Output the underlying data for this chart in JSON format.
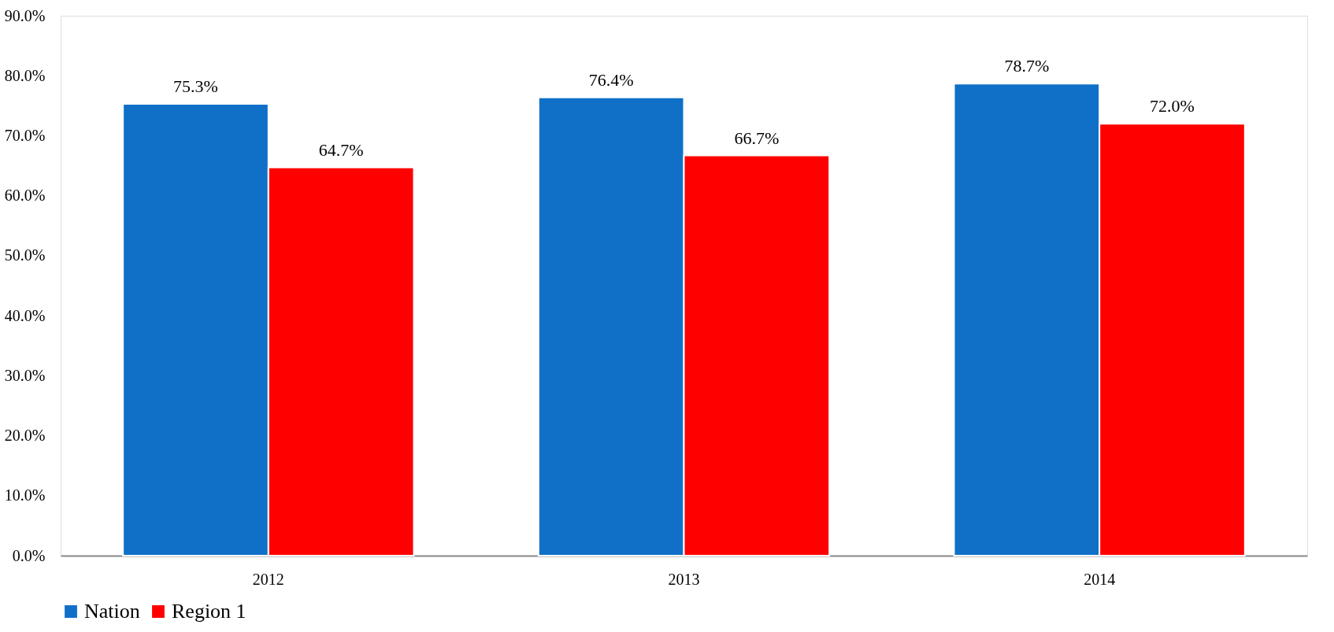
{
  "chart_data": {
    "type": "bar",
    "categories": [
      "2012",
      "2013",
      "2014"
    ],
    "series": [
      {
        "name": "Nation",
        "color": "#1070c8",
        "values": [
          75.3,
          76.4,
          78.7
        ],
        "value_labels": [
          "75.3%",
          "76.4%",
          "78.7%"
        ]
      },
      {
        "name": "Region 1",
        "color": "#ff0000",
        "values": [
          64.7,
          66.7,
          72.0
        ],
        "value_labels": [
          "64.7%",
          "66.7%",
          "72.0%"
        ]
      }
    ],
    "ylim": [
      0,
      90
    ],
    "yticks": [
      {
        "value": 0,
        "label": "0.0%"
      },
      {
        "value": 10,
        "label": "10.0%"
      },
      {
        "value": 20,
        "label": "20.0%"
      },
      {
        "value": 30,
        "label": "30.0%"
      },
      {
        "value": 40,
        "label": "40.0%"
      },
      {
        "value": 50,
        "label": "50.0%"
      },
      {
        "value": 60,
        "label": "60.0%"
      },
      {
        "value": 70,
        "label": "70.0%"
      },
      {
        "value": 80,
        "label": "80.0%"
      },
      {
        "value": 90,
        "label": "90.0%"
      }
    ],
    "legend": "bottom"
  }
}
